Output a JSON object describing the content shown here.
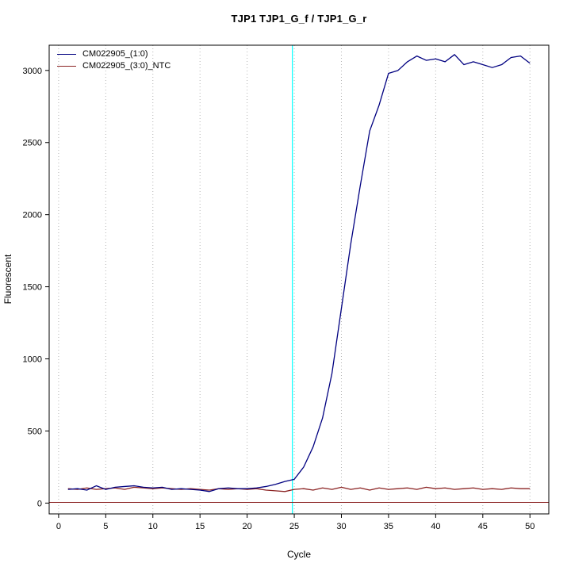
{
  "chart_data": {
    "type": "line",
    "title": "TJP1  TJP1_G_f / TJP1_G_r",
    "xlabel": "Cycle",
    "ylabel": "Fluorescent",
    "xlim": [
      -1,
      52
    ],
    "ylim": [
      -75,
      3175
    ],
    "x_ticks": [
      0,
      5,
      10,
      15,
      20,
      25,
      30,
      35,
      40,
      45,
      50
    ],
    "y_ticks": [
      0,
      500,
      1000,
      1500,
      2000,
      2500,
      3000
    ],
    "grid": "vertical-dotted",
    "grid_color": "#b4b4b4",
    "legend_position": "top-left",
    "x": [
      1,
      2,
      3,
      4,
      5,
      6,
      7,
      8,
      9,
      10,
      11,
      12,
      13,
      14,
      15,
      16,
      17,
      18,
      19,
      20,
      21,
      22,
      23,
      24,
      25,
      26,
      27,
      28,
      29,
      30,
      31,
      32,
      33,
      34,
      35,
      36,
      37,
      38,
      39,
      40,
      41,
      42,
      43,
      44,
      45,
      46,
      47,
      48,
      49,
      50
    ],
    "series": [
      {
        "name": "CM022905_(1:0)",
        "color": "#000080",
        "values": [
          95,
          100,
          90,
          120,
          95,
          110,
          115,
          120,
          110,
          105,
          110,
          95,
          100,
          95,
          90,
          80,
          100,
          105,
          100,
          100,
          105,
          115,
          130,
          150,
          165,
          250,
          390,
          590,
          900,
          1350,
          1800,
          2200,
          2580,
          2760,
          2980,
          3000,
          3060,
          3100,
          3070,
          3080,
          3060,
          3110,
          3040,
          3060,
          3040,
          3020,
          3040,
          3090,
          3100,
          3050
        ]
      },
      {
        "name": "CM022905_(3:0)_NTC",
        "color": "#8B2323",
        "values": [
          100,
          95,
          105,
          95,
          100,
          105,
          95,
          110,
          105,
          100,
          105,
          100,
          95,
          100,
          95,
          90,
          100,
          95,
          100,
          95,
          100,
          90,
          85,
          80,
          95,
          100,
          90,
          105,
          95,
          110,
          95,
          105,
          90,
          105,
          95,
          100,
          105,
          95,
          110,
          100,
          105,
          95,
          100,
          105,
          95,
          100,
          95,
          105,
          100,
          100
        ]
      }
    ],
    "baseline_line": {
      "y": 5,
      "color": "#8B2323"
    },
    "crossing_line": {
      "x": 24.8,
      "color": "#00FFFF"
    },
    "axis_color": "#000000",
    "plot_background": "#ffffff"
  }
}
